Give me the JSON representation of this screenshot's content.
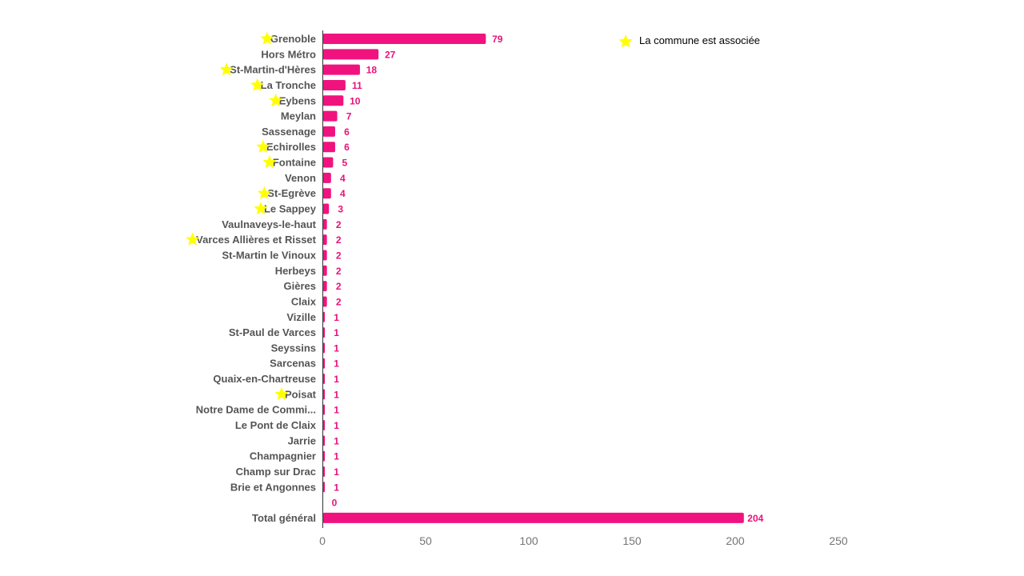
{
  "chart_data": {
    "type": "bar",
    "orientation": "horizontal",
    "categories": [
      "Grenoble",
      "Hors Métro",
      "St-Martin-d'Hères",
      "La Tronche",
      "Eybens",
      "Meylan",
      "Sassenage",
      "Echirolles",
      "Fontaine",
      "Venon",
      "St-Egrève",
      "Le Sappey",
      "Vaulnaveys-le-haut",
      "Varces Allières et Risset",
      "St-Martin le Vinoux",
      "Herbeys",
      "Gières",
      "Claix",
      "Vizille",
      "St-Paul de Varces",
      "Seyssins",
      "Sarcenas",
      "Quaix-en-Chartreuse",
      "Poisat",
      "Notre Dame de Commi...",
      "Le Pont de Claix",
      "Jarrie",
      "Champagnier",
      "Champ sur Drac",
      "Brie et Angonnes",
      "",
      "Total général"
    ],
    "values": [
      79,
      27,
      18,
      11,
      10,
      7,
      6,
      6,
      5,
      4,
      4,
      3,
      2,
      2,
      2,
      2,
      2,
      2,
      1,
      1,
      1,
      1,
      1,
      1,
      1,
      1,
      1,
      1,
      1,
      1,
      0,
      204
    ],
    "starred": [
      "Grenoble",
      "St-Martin-d'Hères",
      "La Tronche",
      "Eybens",
      "Echirolles",
      "Fontaine",
      "St-Egrève",
      "Le Sappey",
      "Varces Allières et Risset",
      "Poisat"
    ],
    "xlim": [
      0,
      250
    ],
    "xticks": [
      0,
      50,
      100,
      150,
      200,
      250
    ],
    "xlabel": "",
    "ylabel": "",
    "grid": false,
    "legend": {
      "position": "top-right",
      "label": "La commune  est associée",
      "marker": "star-icon"
    },
    "colors": {
      "bar": "#f0137f",
      "value_label": "#e8117a",
      "star": "#ffff00",
      "category_label": "#555555",
      "tick_label": "#757575",
      "axis": "#333333"
    }
  }
}
